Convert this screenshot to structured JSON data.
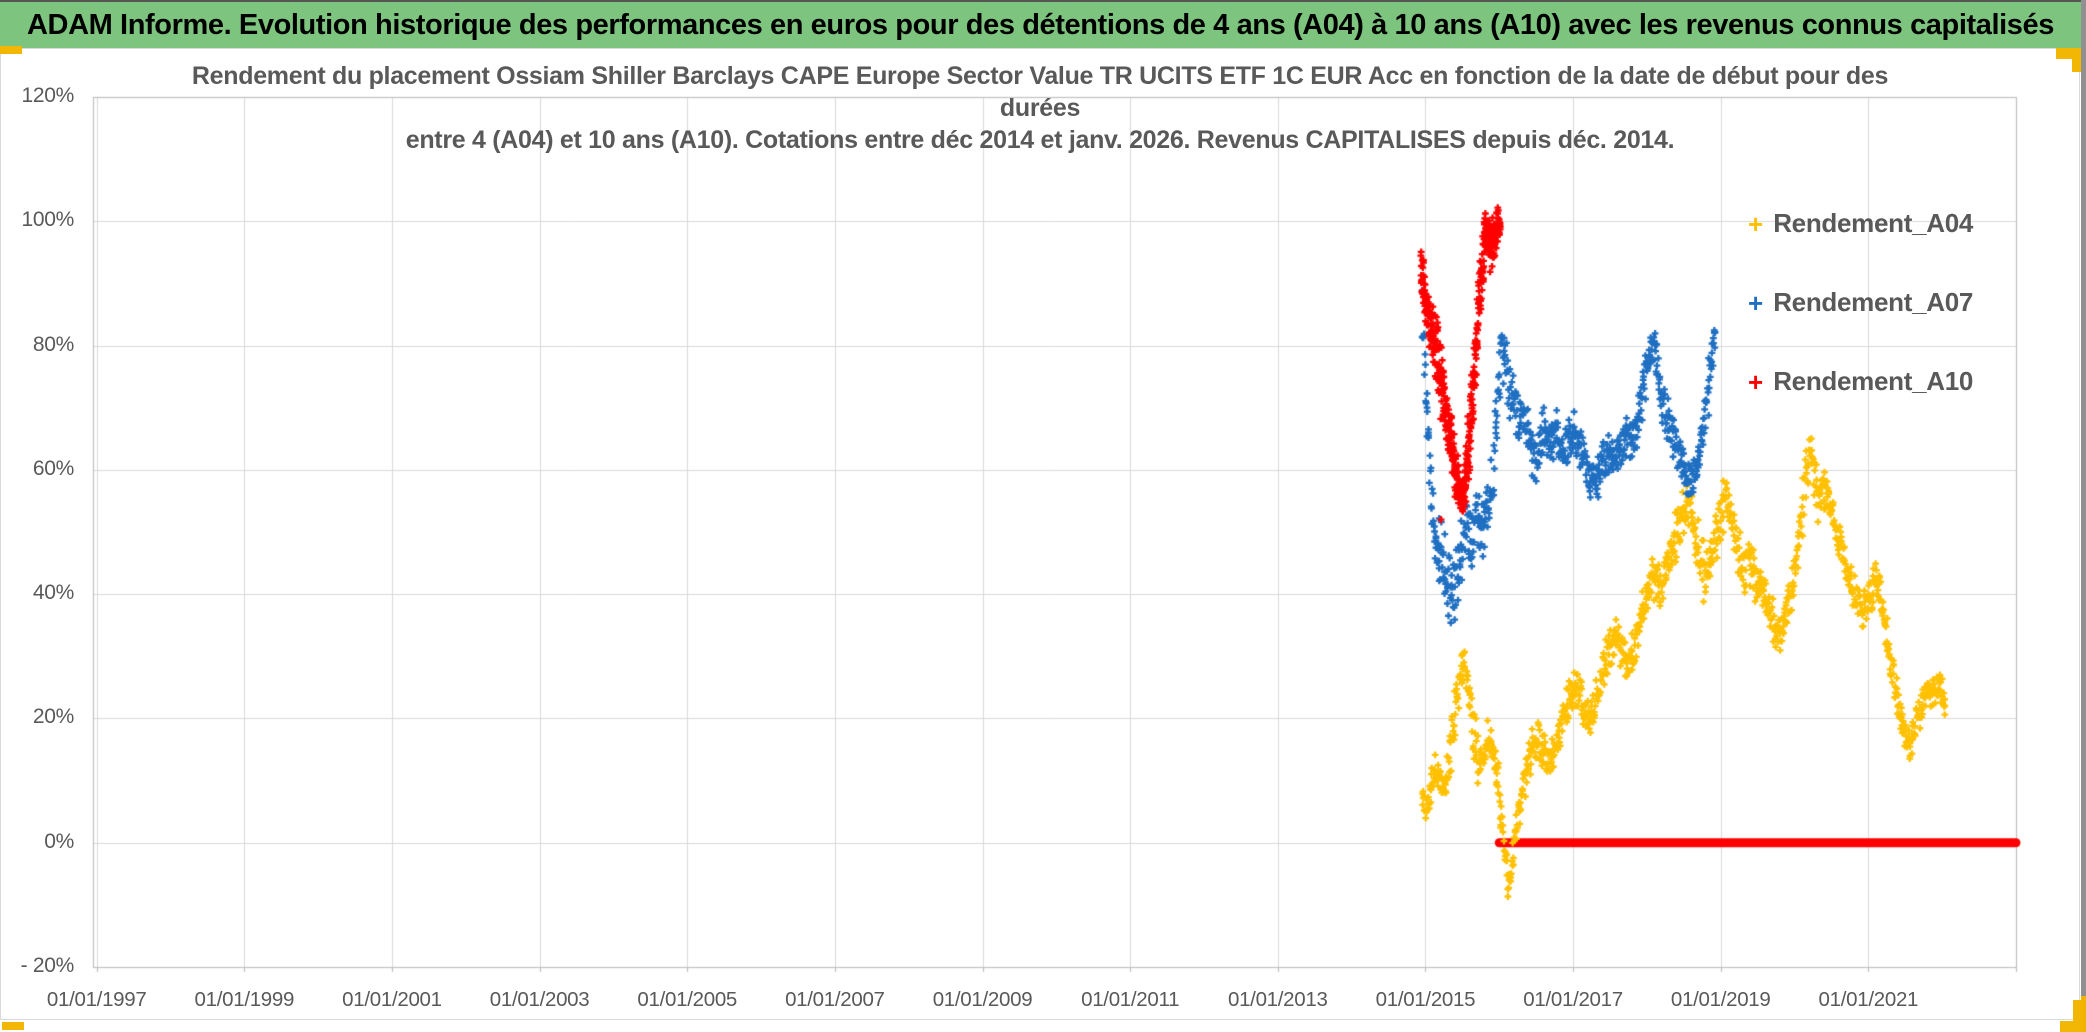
{
  "banner": {
    "text": "ADAM Informe. Evolution historique des performances en euros pour des détentions de 4 ans (A04) à 10 ans (A10) avec les revenus connus capitalisés",
    "bg_color": "#7DC57E",
    "text_color": "#000000"
  },
  "frame": {
    "handle_color": "#F2B705",
    "border_color": "#D9D9D9",
    "gridline_color": "#D9D9D9",
    "axis_line_color": "#BFBFBF",
    "text_color": "#595959"
  },
  "chart_data": {
    "type": "scatter",
    "title_lines": [
      "Rendement du placement Ossiam Shiller Barclays CAPE Europe Sector Value TR UCITS ETF 1C EUR Acc en fonction de la date de début pour des",
      "durées",
      "entre 4 (A04) et 10 ans (A10). Cotations entre déc 2014 et janv. 2026. Revenus CAPITALISES depuis déc. 2014."
    ],
    "x_axis": {
      "tick_labels": [
        "01/01/1997",
        "01/01/1999",
        "01/01/2001",
        "01/01/2003",
        "01/01/2005",
        "01/01/2007",
        "01/01/2009",
        "01/01/2011",
        "01/01/2013",
        "01/01/2015",
        "01/01/2017",
        "01/01/2019",
        "01/01/2021"
      ],
      "tick_years": [
        1997,
        1999,
        2001,
        2003,
        2005,
        2007,
        2009,
        2011,
        2013,
        2015,
        2017,
        2019,
        2021
      ],
      "range_years": [
        1996.95,
        2023.0
      ],
      "gridline_years": [
        1997,
        1999,
        2001,
        2003,
        2005,
        2007,
        2009,
        2011,
        2013,
        2015,
        2017,
        2019,
        2021,
        2023
      ]
    },
    "y_axis": {
      "tick_labels": [
        "120%",
        "100%",
        "80%",
        "60%",
        "40%",
        "20%",
        "0%",
        "- 20%"
      ],
      "tick_values": [
        120,
        100,
        80,
        60,
        40,
        20,
        0,
        -20
      ],
      "range": [
        -20,
        120
      ]
    },
    "grid": true,
    "legend": {
      "position": "right",
      "marker_glyph": "+",
      "items": [
        {
          "label": "Rendement_A04",
          "color": "#FFC000"
        },
        {
          "label": "Rendement_A07",
          "color": "#1F6FC2"
        },
        {
          "label": "Rendement_A10",
          "color": "#FF0000"
        }
      ]
    },
    "series": [
      {
        "name": "Rendement_A04",
        "color": "#FFC000",
        "marker": "plus",
        "band_halfwidth_pct": 4,
        "spine": [
          [
            2014.96,
            7,
            3
          ],
          [
            2015.02,
            6,
            3
          ],
          [
            2015.08,
            9,
            4
          ],
          [
            2015.14,
            11,
            4
          ],
          [
            2015.2,
            10,
            4
          ],
          [
            2015.26,
            9,
            4
          ],
          [
            2015.32,
            13,
            4
          ],
          [
            2015.38,
            19,
            5
          ],
          [
            2015.44,
            25,
            5
          ],
          [
            2015.5,
            29,
            4
          ],
          [
            2015.56,
            25,
            5
          ],
          [
            2015.62,
            21,
            5
          ],
          [
            2015.68,
            16,
            5
          ],
          [
            2015.74,
            12,
            4
          ],
          [
            2015.8,
            14,
            4
          ],
          [
            2015.86,
            17,
            4
          ],
          [
            2015.92,
            15,
            4
          ],
          [
            2015.98,
            9,
            4
          ],
          [
            2016.04,
            2,
            4
          ],
          [
            2016.1,
            -4,
            4
          ],
          [
            2016.14,
            -7,
            4
          ],
          [
            2016.18,
            -3,
            4
          ],
          [
            2016.24,
            3,
            4
          ],
          [
            2016.3,
            8,
            4
          ],
          [
            2016.38,
            12,
            4
          ],
          [
            2016.46,
            16,
            4
          ],
          [
            2016.54,
            16,
            4
          ],
          [
            2016.62,
            14,
            4
          ],
          [
            2016.7,
            13,
            4
          ],
          [
            2016.78,
            16,
            4
          ],
          [
            2016.86,
            19,
            4
          ],
          [
            2016.94,
            22,
            4
          ],
          [
            2017.02,
            25,
            4
          ],
          [
            2017.1,
            23,
            4
          ],
          [
            2017.18,
            20,
            4
          ],
          [
            2017.26,
            21,
            4
          ],
          [
            2017.34,
            24,
            4
          ],
          [
            2017.42,
            28,
            4
          ],
          [
            2017.5,
            32,
            4
          ],
          [
            2017.58,
            34,
            4
          ],
          [
            2017.66,
            31,
            4
          ],
          [
            2017.74,
            29,
            4
          ],
          [
            2017.82,
            31,
            4
          ],
          [
            2017.9,
            35,
            4
          ],
          [
            2017.98,
            39,
            4
          ],
          [
            2018.06,
            43,
            5
          ],
          [
            2018.14,
            42,
            5
          ],
          [
            2018.22,
            42,
            5
          ],
          [
            2018.3,
            46,
            5
          ],
          [
            2018.38,
            49,
            5
          ],
          [
            2018.46,
            52,
            5
          ],
          [
            2018.54,
            55,
            4
          ],
          [
            2018.62,
            52,
            5
          ],
          [
            2018.7,
            47,
            5
          ],
          [
            2018.78,
            43,
            5
          ],
          [
            2018.86,
            44,
            5
          ],
          [
            2018.94,
            49,
            5
          ],
          [
            2019.02,
            54,
            5
          ],
          [
            2019.08,
            56,
            4
          ],
          [
            2019.16,
            50,
            5
          ],
          [
            2019.24,
            46,
            5
          ],
          [
            2019.32,
            44,
            5
          ],
          [
            2019.4,
            46,
            5
          ],
          [
            2019.48,
            43,
            5
          ],
          [
            2019.56,
            41,
            4
          ],
          [
            2019.64,
            38,
            4
          ],
          [
            2019.72,
            35,
            4
          ],
          [
            2019.8,
            33,
            4
          ],
          [
            2019.88,
            36,
            4
          ],
          [
            2019.96,
            41,
            4
          ],
          [
            2020.04,
            47,
            5
          ],
          [
            2020.12,
            55,
            5
          ],
          [
            2020.18,
            62,
            5
          ],
          [
            2020.24,
            61,
            5
          ],
          [
            2020.3,
            56,
            5
          ],
          [
            2020.38,
            57,
            4
          ],
          [
            2020.46,
            55,
            4
          ],
          [
            2020.54,
            51,
            4
          ],
          [
            2020.62,
            47,
            4
          ],
          [
            2020.7,
            44,
            4
          ],
          [
            2020.78,
            41,
            4
          ],
          [
            2020.86,
            38,
            4
          ],
          [
            2020.94,
            38,
            4
          ],
          [
            2021.02,
            40,
            4
          ],
          [
            2021.1,
            43,
            4
          ],
          [
            2021.16,
            40,
            4
          ],
          [
            2021.24,
            34,
            4
          ],
          [
            2021.32,
            28,
            4
          ],
          [
            2021.4,
            23,
            4
          ],
          [
            2021.48,
            18,
            3
          ],
          [
            2021.56,
            15,
            3
          ],
          [
            2021.64,
            19,
            3
          ],
          [
            2021.72,
            22,
            3
          ],
          [
            2021.8,
            25,
            3
          ],
          [
            2021.88,
            24,
            3
          ],
          [
            2021.96,
            25,
            3
          ],
          [
            2022.04,
            22,
            3
          ]
        ],
        "density_step_years": 0.012,
        "markers_per_step": 2
      },
      {
        "name": "Rendement_A07",
        "color": "#1F6FC2",
        "marker": "plus",
        "band_halfwidth_pct": 5,
        "spine": [
          [
            2014.96,
            84,
            6
          ],
          [
            2015.0,
            74,
            6
          ],
          [
            2015.04,
            64,
            6
          ],
          [
            2015.08,
            55,
            6
          ],
          [
            2015.14,
            48,
            6
          ],
          [
            2015.2,
            45,
            8
          ],
          [
            2015.28,
            43,
            8
          ],
          [
            2015.36,
            42,
            8
          ],
          [
            2015.44,
            44,
            8
          ],
          [
            2015.5,
            48,
            7
          ],
          [
            2015.56,
            51,
            6
          ],
          [
            2015.62,
            48,
            6
          ],
          [
            2015.7,
            52,
            6
          ],
          [
            2015.78,
            50,
            6
          ],
          [
            2015.86,
            55,
            6
          ],
          [
            2015.92,
            61,
            6
          ],
          [
            2015.98,
            70,
            7
          ],
          [
            2016.03,
            80,
            7
          ],
          [
            2016.08,
            79,
            6
          ],
          [
            2016.13,
            72,
            6
          ],
          [
            2016.18,
            73,
            5
          ],
          [
            2016.25,
            67,
            5
          ],
          [
            2016.32,
            69,
            5
          ],
          [
            2016.4,
            66,
            5
          ],
          [
            2016.48,
            61,
            4
          ],
          [
            2016.55,
            64,
            5
          ],
          [
            2016.62,
            67,
            4
          ],
          [
            2016.7,
            64,
            4
          ],
          [
            2016.78,
            66,
            4
          ],
          [
            2016.85,
            63,
            4
          ],
          [
            2016.93,
            65,
            4
          ],
          [
            2017.0,
            66,
            4
          ],
          [
            2017.08,
            64,
            4
          ],
          [
            2017.16,
            61,
            4
          ],
          [
            2017.24,
            58,
            4
          ],
          [
            2017.32,
            57,
            4
          ],
          [
            2017.4,
            61,
            4
          ],
          [
            2017.48,
            63,
            4
          ],
          [
            2017.56,
            61,
            4
          ],
          [
            2017.64,
            64,
            4
          ],
          [
            2017.72,
            65,
            4
          ],
          [
            2017.8,
            64,
            4
          ],
          [
            2017.88,
            68,
            5
          ],
          [
            2017.96,
            74,
            5
          ],
          [
            2018.04,
            79,
            4
          ],
          [
            2018.1,
            80,
            4
          ],
          [
            2018.18,
            74,
            5
          ],
          [
            2018.26,
            69,
            5
          ],
          [
            2018.34,
            66,
            4
          ],
          [
            2018.42,
            63,
            4
          ],
          [
            2018.5,
            60,
            4
          ],
          [
            2018.58,
            58,
            4
          ],
          [
            2018.66,
            61,
            4
          ],
          [
            2018.74,
            66,
            4
          ],
          [
            2018.82,
            72,
            5
          ],
          [
            2018.88,
            79,
            5
          ],
          [
            2018.93,
            84,
            4
          ]
        ],
        "density_step_years": 0.011,
        "markers_per_step": 2
      },
      {
        "name": "Rendement_A10",
        "color": "#FF0000",
        "marker": "plus",
        "band_halfwidth_pct": 5,
        "spine": [
          [
            2014.94,
            92,
            4
          ],
          [
            2015.0,
            88,
            5
          ],
          [
            2015.05,
            84,
            5
          ],
          [
            2015.12,
            81,
            6
          ],
          [
            2015.18,
            77,
            7
          ],
          [
            2015.25,
            72,
            7
          ],
          [
            2015.32,
            66,
            6
          ],
          [
            2015.4,
            60,
            5
          ],
          [
            2015.47,
            56,
            4
          ],
          [
            2015.53,
            57,
            5
          ],
          [
            2015.6,
            66,
            7
          ],
          [
            2015.66,
            76,
            7
          ],
          [
            2015.72,
            86,
            7
          ],
          [
            2015.78,
            95,
            6
          ],
          [
            2015.84,
            99,
            4
          ],
          [
            2015.88,
            96,
            5
          ],
          [
            2015.93,
            97,
            5
          ],
          [
            2015.98,
            100,
            3
          ],
          [
            2016.02,
            99,
            3
          ]
        ],
        "outliers": [
          [
            2015.21,
            52
          ]
        ],
        "zero_segment": {
          "from_year": 2016.0,
          "to_year": 2023.0,
          "value_pct": 0,
          "thickness_px": 9
        },
        "density_step_years": 0.006,
        "markers_per_step": 3
      }
    ]
  }
}
